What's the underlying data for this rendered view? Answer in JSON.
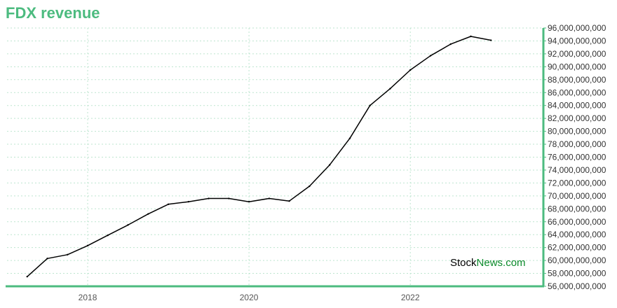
{
  "title": "FDX revenue",
  "watermark": {
    "part1": "Stock",
    "part2": "News.com",
    "color1": "#000000",
    "color2": "#0a8a2a"
  },
  "colors": {
    "accent": "#4cbb7f",
    "line": "#000000",
    "grid": "#bde5cf"
  },
  "chart_data": {
    "type": "line",
    "title": "FDX revenue",
    "xlabel": "",
    "ylabel": "",
    "xlim": [
      2017.0,
      2023.65
    ],
    "ylim": [
      56000000000,
      96000000000
    ],
    "x_ticks": [
      {
        "value": 2018,
        "label": "2018"
      },
      {
        "value": 2020,
        "label": "2020"
      },
      {
        "value": 2022,
        "label": "2022"
      }
    ],
    "y_ticks": [
      56000000000,
      58000000000,
      60000000000,
      62000000000,
      64000000000,
      66000000000,
      68000000000,
      70000000000,
      72000000000,
      74000000000,
      76000000000,
      78000000000,
      80000000000,
      82000000000,
      84000000000,
      86000000000,
      88000000000,
      90000000000,
      92000000000,
      94000000000,
      96000000000
    ],
    "y_tick_labels": [
      "56,000,000,000",
      "58,000,000,000",
      "60,000,000,000",
      "62,000,000,000",
      "64,000,000,000",
      "66,000,000,000",
      "68,000,000,000",
      "70,000,000,000",
      "72,000,000,000",
      "74,000,000,000",
      "76,000,000,000",
      "78,000,000,000",
      "80,000,000,000",
      "82,000,000,000",
      "84,000,000,000",
      "86,000,000,000",
      "88,000,000,000",
      "90,000,000,000",
      "92,000,000,000",
      "94,000,000,000",
      "96,000,000,000"
    ],
    "grid": true,
    "series": [
      {
        "x": [
          2017.25,
          2017.5,
          2017.75,
          2018.0,
          2018.25,
          2018.5,
          2018.75,
          2019.0,
          2019.25,
          2019.5,
          2019.75,
          2020.0,
          2020.25,
          2020.5,
          2020.75,
          2021.0,
          2021.25,
          2021.5,
          2021.75,
          2022.0,
          2022.25,
          2022.5,
          2022.75,
          2023.0
        ],
        "values": [
          57500000000,
          60300000000,
          60900000000,
          62300000000,
          63900000000,
          65500000000,
          67200000000,
          68700000000,
          69100000000,
          69600000000,
          69600000000,
          69100000000,
          69600000000,
          69200000000,
          71500000000,
          74800000000,
          78900000000,
          84000000000,
          86600000000,
          89500000000,
          91700000000,
          93500000000,
          94700000000,
          94100000000
        ]
      }
    ]
  }
}
